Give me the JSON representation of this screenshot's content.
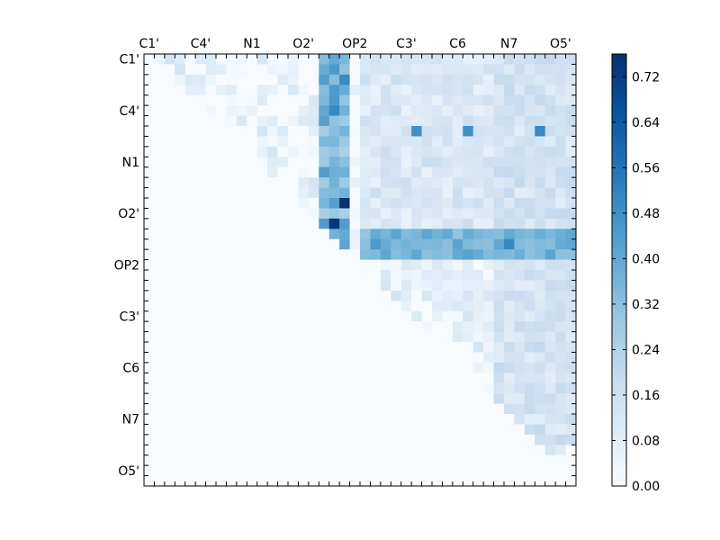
{
  "chart_data": {
    "type": "heatmap",
    "title": "",
    "xlabel": "",
    "ylabel": "",
    "n": 42,
    "x_tick_labels": [
      "C1'",
      "C4'",
      "N1",
      "O2'",
      "OP2",
      "C3'",
      "C6",
      "N7",
      "O5'"
    ],
    "y_tick_labels": [
      "C1'",
      "C4'",
      "N1",
      "O2'",
      "OP2",
      "C3'",
      "C6",
      "N7",
      "O5'"
    ],
    "label_every": 5,
    "colormap": "Blues",
    "value_range": [
      0.0,
      0.76
    ],
    "colorbar_ticks": [
      "0.00",
      "0.08",
      "0.16",
      "0.24",
      "0.32",
      "0.40",
      "0.48",
      "0.56",
      "0.64",
      "0.72"
    ],
    "colors": {
      "low": "#f7fbff",
      "high": "#08306b"
    },
    "matrix_note_triangle": "upper",
    "hotspots": [
      {
        "row": 0,
        "col": 18,
        "value": 0.4
      },
      {
        "row": 0,
        "col": 19,
        "value": 0.35
      },
      {
        "row": 2,
        "col": 19,
        "value": 0.5
      },
      {
        "row": 4,
        "col": 18,
        "value": 0.45
      },
      {
        "row": 5,
        "col": 18,
        "value": 0.5
      },
      {
        "row": 7,
        "col": 26,
        "value": 0.48
      },
      {
        "row": 7,
        "col": 31,
        "value": 0.48
      },
      {
        "row": 7,
        "col": 38,
        "value": 0.5
      },
      {
        "row": 14,
        "col": 19,
        "value": 0.76
      },
      {
        "row": 16,
        "col": 18,
        "value": 0.74
      },
      {
        "row": 18,
        "col": 22,
        "value": 0.45
      },
      {
        "row": 18,
        "col": 35,
        "value": 0.5
      }
    ]
  }
}
